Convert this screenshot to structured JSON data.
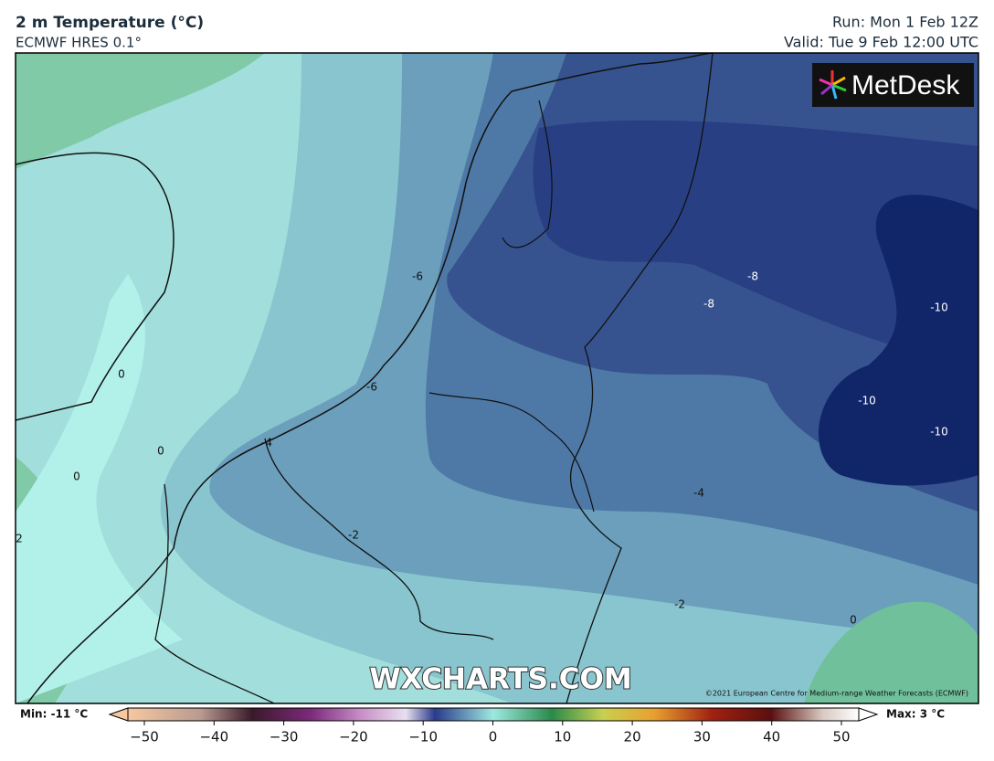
{
  "header": {
    "title": "2 m Temperature (°C)",
    "subtitle": "ECMWF HRES 0.1°",
    "run": "Run: Mon 1 Feb 12Z",
    "valid": "Valid: Tue 9 Feb 12:00 UTC"
  },
  "logo": "MetDesk",
  "watermark": "WXCHARTS.COM",
  "copyright": "©2021 European Centre for Medium-range Weather Forecasts (ECMWF)",
  "contour_labels": [
    "-6",
    "-8",
    "-8",
    "-10",
    "-6",
    "-10",
    "-10",
    "-4",
    "0",
    "0",
    "0",
    "2",
    "-2",
    "-4",
    "-2",
    "0"
  ],
  "colorbar": {
    "min_label": "Min: -11 °C",
    "max_label": "Max: 3 °C",
    "ticks": [
      "−50",
      "−40",
      "−30",
      "−20",
      "−10",
      "0",
      "10",
      "20",
      "30",
      "40",
      "50"
    ]
  }
}
